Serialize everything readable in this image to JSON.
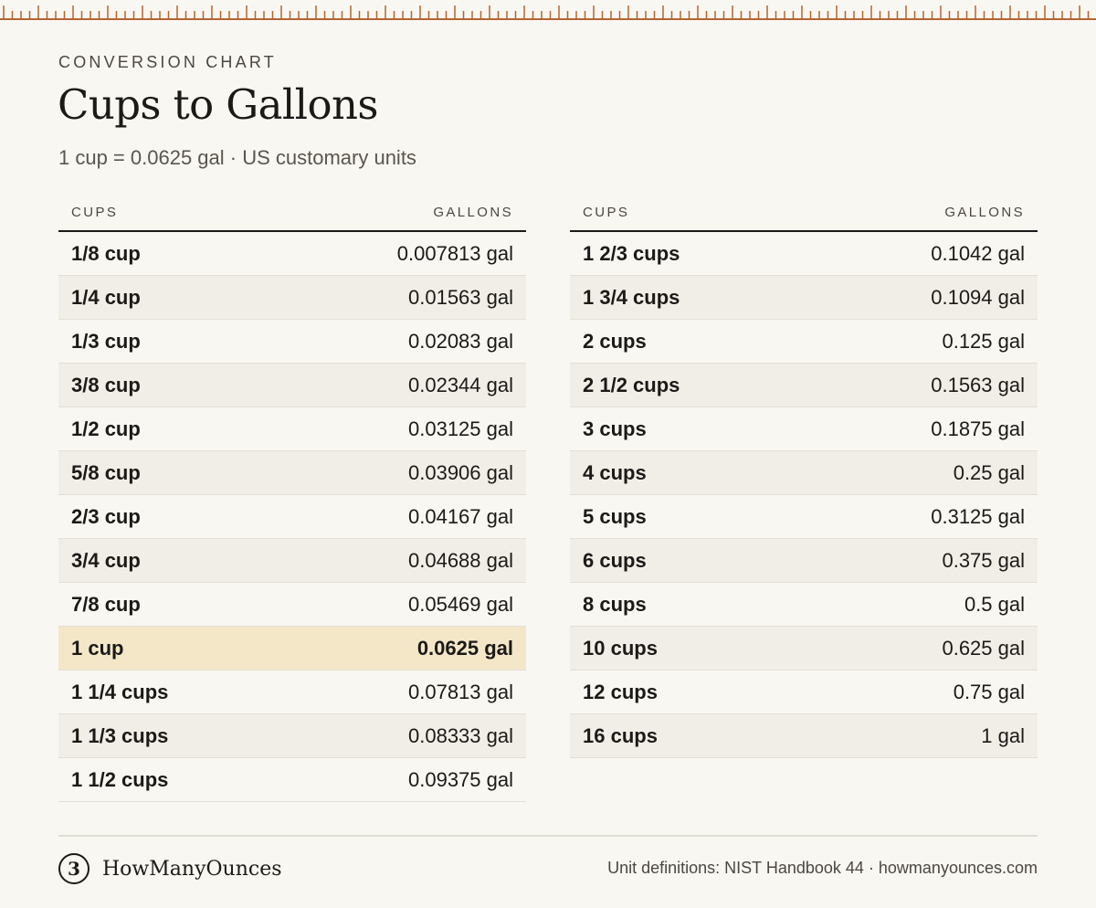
{
  "header": {
    "eyebrow": "CONVERSION CHART",
    "title": "Cups to Gallons",
    "subtitle": "1 cup = 0.0625 gal · US customary units"
  },
  "colors": {
    "accent": "#b5652f",
    "highlight_row": "#f4e7c8",
    "alt_row": "#f1eee7",
    "background": "#f9f7f2"
  },
  "tables": [
    {
      "col_cups": "CUPS",
      "col_gallons": "GALLONS",
      "rows": [
        {
          "cups": "1/8 cup",
          "gallons": "0.007813 gal"
        },
        {
          "cups": "1/4 cup",
          "gallons": "0.01563 gal"
        },
        {
          "cups": "1/3 cup",
          "gallons": "0.02083 gal"
        },
        {
          "cups": "3/8 cup",
          "gallons": "0.02344 gal"
        },
        {
          "cups": "1/2 cup",
          "gallons": "0.03125 gal"
        },
        {
          "cups": "5/8 cup",
          "gallons": "0.03906 gal"
        },
        {
          "cups": "2/3 cup",
          "gallons": "0.04167 gal"
        },
        {
          "cups": "3/4 cup",
          "gallons": "0.04688 gal"
        },
        {
          "cups": "7/8 cup",
          "gallons": "0.05469 gal"
        },
        {
          "cups": "1 cup",
          "gallons": "0.0625 gal",
          "highlight": true
        },
        {
          "cups": "1 1/4 cups",
          "gallons": "0.07813 gal"
        },
        {
          "cups": "1 1/3 cups",
          "gallons": "0.08333 gal"
        },
        {
          "cups": "1 1/2 cups",
          "gallons": "0.09375 gal"
        }
      ]
    },
    {
      "col_cups": "CUPS",
      "col_gallons": "GALLONS",
      "rows": [
        {
          "cups": "1 2/3 cups",
          "gallons": "0.1042 gal"
        },
        {
          "cups": "1 3/4 cups",
          "gallons": "0.1094 gal"
        },
        {
          "cups": "2 cups",
          "gallons": "0.125 gal"
        },
        {
          "cups": "2 1/2 cups",
          "gallons": "0.1563 gal"
        },
        {
          "cups": "3 cups",
          "gallons": "0.1875 gal"
        },
        {
          "cups": "4 cups",
          "gallons": "0.25 gal"
        },
        {
          "cups": "5 cups",
          "gallons": "0.3125 gal"
        },
        {
          "cups": "6 cups",
          "gallons": "0.375 gal"
        },
        {
          "cups": "8 cups",
          "gallons": "0.5 gal"
        },
        {
          "cups": "10 cups",
          "gallons": "0.625 gal"
        },
        {
          "cups": "12 cups",
          "gallons": "0.75 gal"
        },
        {
          "cups": "16 cups",
          "gallons": "1 gal"
        }
      ]
    }
  ],
  "footer": {
    "brand_mark": "3",
    "brand_mark_icon": "measuring-cup-logo-icon",
    "brand_name": "HowManyOunces",
    "source": "Unit definitions: NIST Handbook 44 · howmanyounces.com"
  }
}
